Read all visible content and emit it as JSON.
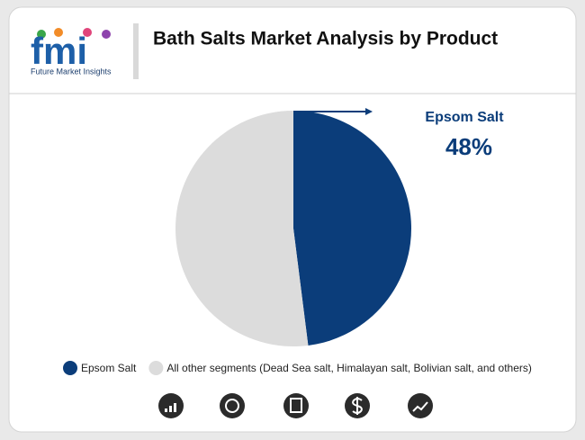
{
  "brand": {
    "mark": "fmi",
    "name": "Future Market Insights"
  },
  "chart_data": {
    "type": "pie",
    "title": "Bath Salts Market Analysis by Product",
    "categories": [
      "Epsom Salt",
      "All other segments (Dead Sea salt, Himalayan salt, Bolivian salt, and others)"
    ],
    "values": [
      48,
      52
    ],
    "value_labels": [
      "48%",
      null
    ],
    "colors": [
      "#0b3d7a",
      "#dcdcdc"
    ],
    "legend": "bottom"
  }
}
